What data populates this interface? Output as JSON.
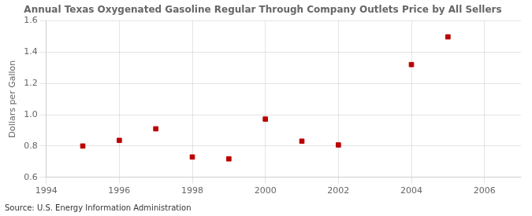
{
  "chart_data": {
    "type": "scatter",
    "title": "Annual Texas Oxygenated Gasoline Regular Through Company Outlets Price by All Sellers",
    "ylabel": "Dollars per Gallon",
    "annotation": "Source: U.S. Energy Information Administration",
    "x": [
      1995,
      1996,
      1997,
      1998,
      1999,
      2000,
      2001,
      2002,
      2004,
      2005
    ],
    "values": [
      0.8,
      0.836,
      0.91,
      0.73,
      0.718,
      0.972,
      0.831,
      0.807,
      1.32,
      1.497
    ],
    "xlim": [
      1994,
      2007
    ],
    "ylim": [
      0.6,
      1.6
    ],
    "xticks": [
      1994,
      1996,
      1998,
      2000,
      2002,
      2004,
      2006
    ],
    "yticks": [
      0.6,
      0.8,
      {
        "value": 1.0,
        "label": "1.0"
      },
      1.2,
      1.4,
      1.6
    ],
    "color": "#bb0000",
    "marker": "square",
    "grid": true
  }
}
